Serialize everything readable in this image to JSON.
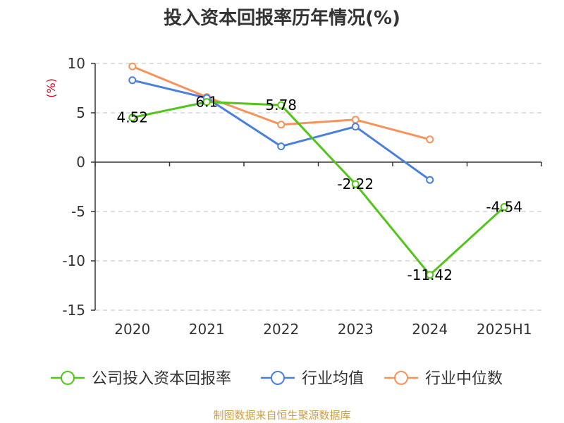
{
  "title": "投入资本回报率历年情况(%)",
  "source": "制图数据来自恒生聚源数据库",
  "colors": {
    "company": "#52c41a",
    "industry_mean": "#4a7fdb",
    "industry_median": "#f5935a",
    "axis": "#333333",
    "grid": "#cccccc",
    "unit": "#d9001b",
    "source": "#c8a04a"
  },
  "chart_data": {
    "type": "line",
    "title": "投入资本回报率历年情况(%)",
    "ylabel": "(%)",
    "xlabel": "",
    "ylim": [
      -15,
      10
    ],
    "yticks": [
      10,
      5,
      0,
      -5,
      -10,
      -15
    ],
    "ytick_labels": [
      "10",
      "5",
      "0",
      "-5",
      "-10",
      "-15"
    ],
    "grid": true,
    "legend_position": "bottom",
    "categories": [
      "2020",
      "2021",
      "2022",
      "2023",
      "2024",
      "2025H1"
    ],
    "series": [
      {
        "name": "公司投入资本回报率",
        "color": "#52c41a",
        "values": [
          4.52,
          6.1,
          5.78,
          -2.22,
          -11.42,
          -4.54
        ],
        "labels": [
          "4.52",
          "6.1",
          "5.78",
          "-2.22",
          "-11.42",
          "-4.54"
        ]
      },
      {
        "name": "行业均值",
        "color": "#4a7fdb",
        "values": [
          8.3,
          6.5,
          1.6,
          3.6,
          -1.8,
          null
        ]
      },
      {
        "name": "行业中位数",
        "color": "#f5935a",
        "values": [
          9.7,
          6.6,
          3.8,
          4.3,
          2.3,
          null
        ]
      }
    ]
  }
}
